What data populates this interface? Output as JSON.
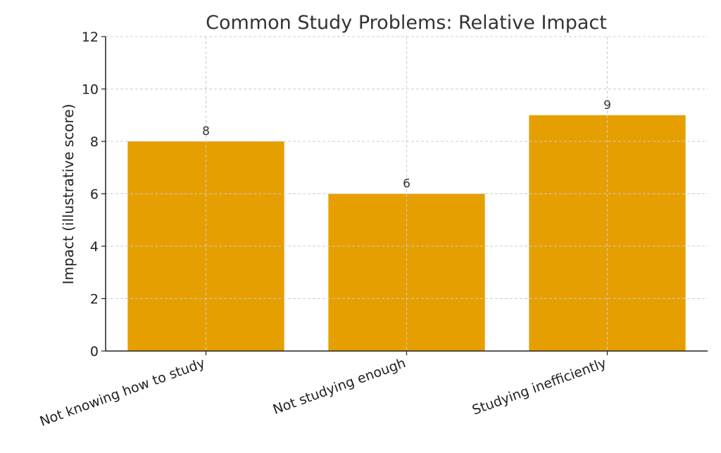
{
  "chart_data": {
    "type": "bar",
    "title": "Common Study Problems: Relative Impact",
    "xlabel": "",
    "ylabel": "Impact (illustrative score)",
    "categories": [
      "Not knowing how to study",
      "Not studying enough",
      "Studying inefficiently"
    ],
    "values": [
      8,
      6,
      9
    ],
    "data_labels": [
      "8",
      "6",
      "9"
    ],
    "ylim": [
      0,
      12
    ],
    "yticks": [
      "0",
      "2",
      "4",
      "6",
      "8",
      "10",
      "12"
    ],
    "grid": true,
    "bar_color": "#E69F00"
  }
}
